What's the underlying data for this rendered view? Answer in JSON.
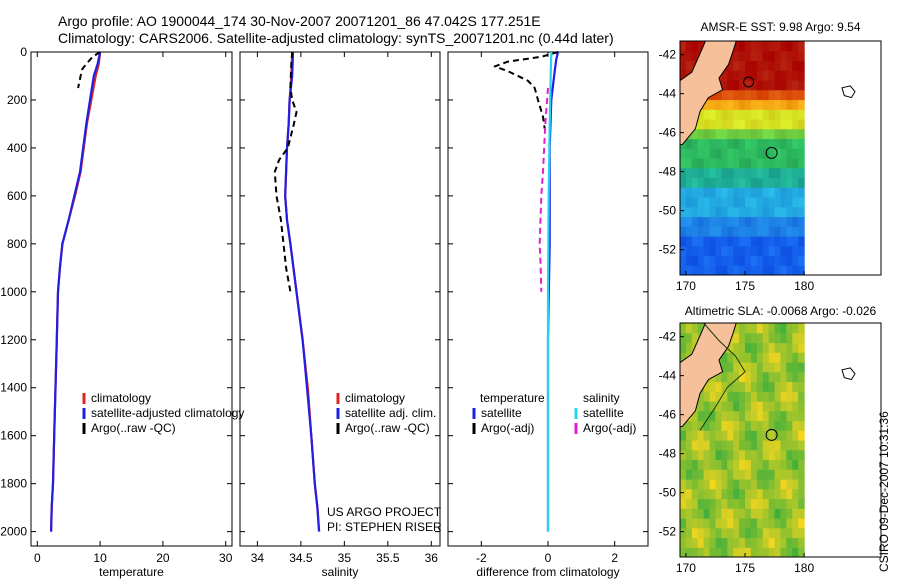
{
  "header": {
    "line1": "Argo profile: AO 1900044_174 30-Nov-2007 20071201_86 47.042S 177.251E",
    "line2": "Climatology: CARS2006. Satellite-adjusted climatology: synTS_20071201.nc (0.44d later)"
  },
  "timestamp": "CSIRO 09-Dec-2007 10:31:36",
  "colors": {
    "climatology": "#e0241f",
    "satellite": "#1f1fe6",
    "argo": "#000000",
    "salinity_satellite": "#22d4f0",
    "salinity_argo": "#e020d0",
    "land": "#f5c09a"
  },
  "chart_data": [
    {
      "type": "line",
      "panel": "temperature",
      "xlabel": "temperature",
      "xlim": [
        -1,
        31
      ],
      "ylim": [
        0,
        2060
      ],
      "y_reversed": true,
      "xticks": [
        "0",
        "10",
        "20",
        "30"
      ],
      "yticks": [
        "0",
        "200",
        "400",
        "600",
        "800",
        "1000",
        "1200",
        "1400",
        "1600",
        "1800",
        "2000"
      ],
      "legend": [
        "climatology",
        "satellite-adjusted climatology",
        "Argo(..raw -QC)"
      ],
      "series": [
        {
          "name": "climatology",
          "style": "solid",
          "color": "#e0241f",
          "x": [
            10.0,
            9.8,
            9.3,
            8.6,
            7.9,
            6.9,
            6.0,
            5.0,
            4.0,
            3.6,
            3.3,
            3.1,
            2.9,
            2.7,
            2.5,
            2.3,
            2.2
          ],
          "y": [
            0,
            50,
            100,
            200,
            300,
            500,
            600,
            700,
            800,
            900,
            1000,
            1200,
            1400,
            1600,
            1800,
            1900,
            2000
          ]
        },
        {
          "name": "satellite-adjusted climatology",
          "style": "solid",
          "color": "#1f1fe6",
          "x": [
            10.0,
            9.6,
            9.0,
            8.4,
            7.8,
            6.8,
            5.9,
            5.0,
            4.0,
            3.6,
            3.3,
            3.1,
            2.9,
            2.7,
            2.5,
            2.3,
            2.2
          ],
          "y": [
            0,
            50,
            100,
            200,
            300,
            500,
            600,
            700,
            800,
            900,
            1000,
            1200,
            1400,
            1600,
            1800,
            1900,
            2000
          ]
        },
        {
          "name": "Argo(..raw -QC)",
          "style": "dashed",
          "color": "#000000",
          "x": [
            10.0,
            8.8,
            7.8,
            7.2,
            6.9,
            6.5
          ],
          "y": [
            0,
            20,
            50,
            70,
            100,
            150
          ]
        }
      ]
    },
    {
      "type": "line",
      "panel": "salinity",
      "xlabel": "salinity",
      "xlim": [
        33.8,
        36.1
      ],
      "ylim": [
        0,
        2060
      ],
      "y_reversed": true,
      "xticks": [
        "34",
        "34.5",
        "35",
        "35.5",
        "36"
      ],
      "legend": [
        "climatology",
        "satellite adj. clim.",
        "Argo(..raw -QC)"
      ],
      "annotations": [
        "US ARGO PROJECT",
        "PI: STEPHEN RISER"
      ],
      "series": [
        {
          "name": "climatology",
          "style": "solid",
          "color": "#e0241f",
          "x": [
            34.4,
            34.39,
            34.37,
            34.36,
            34.34,
            34.33,
            34.32,
            34.34,
            34.38,
            34.45,
            34.52,
            34.58,
            34.62,
            34.66,
            34.69,
            34.71
          ],
          "y": [
            0,
            100,
            200,
            300,
            400,
            500,
            600,
            700,
            800,
            1000,
            1200,
            1400,
            1600,
            1800,
            1900,
            2000
          ]
        },
        {
          "name": "satellite adj. clim.",
          "style": "solid",
          "color": "#1f1fe6",
          "x": [
            34.41,
            34.4,
            34.37,
            34.36,
            34.34,
            34.33,
            34.32,
            34.34,
            34.38,
            34.45,
            34.52,
            34.57,
            34.62,
            34.66,
            34.69,
            34.71
          ],
          "y": [
            0,
            100,
            200,
            300,
            400,
            500,
            600,
            700,
            800,
            1000,
            1200,
            1400,
            1600,
            1800,
            1900,
            2000
          ]
        },
        {
          "name": "Argo(..raw -QC)",
          "style": "dashed",
          "color": "#000000",
          "x": [
            34.4,
            34.39,
            34.38,
            34.4,
            34.45,
            34.42,
            34.35,
            34.25,
            34.2,
            34.22,
            34.27,
            34.3,
            34.33,
            34.38
          ],
          "y": [
            0,
            50,
            150,
            200,
            250,
            300,
            400,
            450,
            500,
            600,
            700,
            800,
            900,
            1000
          ]
        }
      ]
    },
    {
      "type": "line",
      "panel": "difference",
      "xlabel": "difference from climatology",
      "xlim": [
        -3.0,
        3.0
      ],
      "ylim": [
        0,
        2060
      ],
      "y_reversed": true,
      "xticks": [
        "-2",
        "0",
        "2"
      ],
      "legend": [
        "temperature",
        "satellite",
        "Argo(-adj)",
        "salinity",
        "satellite",
        "Argo(-adj)"
      ],
      "series": [
        {
          "name": "temperature satellite",
          "style": "solid",
          "color": "#1f1fe6",
          "x": [
            0.3,
            0.25,
            0.2,
            0.1,
            0.05,
            0.05,
            0.0,
            0.0
          ],
          "y": [
            0,
            30,
            80,
            200,
            400,
            800,
            1200,
            2000
          ]
        },
        {
          "name": "temperature Argo(-adj)",
          "style": "dashed",
          "color": "#000000",
          "x": [
            0.3,
            -0.2,
            -1.2,
            -1.6,
            -1.2,
            -0.6,
            -0.4,
            -0.3,
            -0.15,
            -0.1
          ],
          "y": [
            0,
            20,
            40,
            60,
            80,
            120,
            150,
            200,
            270,
            320
          ]
        },
        {
          "name": "salinity satellite",
          "style": "solid",
          "color": "#22d4f0",
          "x": [
            0.1,
            0.08,
            0.05,
            0.02,
            0.0,
            0.0,
            0.0
          ],
          "y": [
            0,
            100,
            300,
            600,
            1000,
            1500,
            2000
          ]
        },
        {
          "name": "salinity Argo(-adj)",
          "style": "dashed",
          "color": "#e020d0",
          "x": [
            0.0,
            -0.08,
            -0.15,
            -0.2,
            -0.25,
            -0.22,
            -0.2
          ],
          "y": [
            150,
            300,
            500,
            600,
            800,
            900,
            1000
          ]
        }
      ]
    },
    {
      "type": "heatmap",
      "panel": "map_sst",
      "title": "AMSR-E SST: 9.98 Argo: 9.54",
      "xlim": [
        169.5,
        186.5
      ],
      "ylim": [
        -53.3,
        -41.3
      ],
      "xticks": [
        "170",
        "175",
        "180"
      ],
      "yticks": [
        "-42",
        "-44",
        "-46",
        "-48",
        "-50",
        "-52"
      ],
      "profile_marker": {
        "lon": 177.25,
        "lat": -47.04
      },
      "extra_marker": {
        "lon": 175.3,
        "lat": -43.4
      }
    },
    {
      "type": "heatmap",
      "panel": "map_sla",
      "title": "Altimetric SLA: -0.0068 Argo: -0.026",
      "xlim": [
        169.5,
        186.5
      ],
      "ylim": [
        -53.3,
        -41.3
      ],
      "xticks": [
        "170",
        "175",
        "180"
      ],
      "yticks": [
        "-42",
        "-44",
        "-46",
        "-48",
        "-50",
        "-52"
      ],
      "profile_marker": {
        "lon": 177.25,
        "lat": -47.04
      }
    }
  ]
}
